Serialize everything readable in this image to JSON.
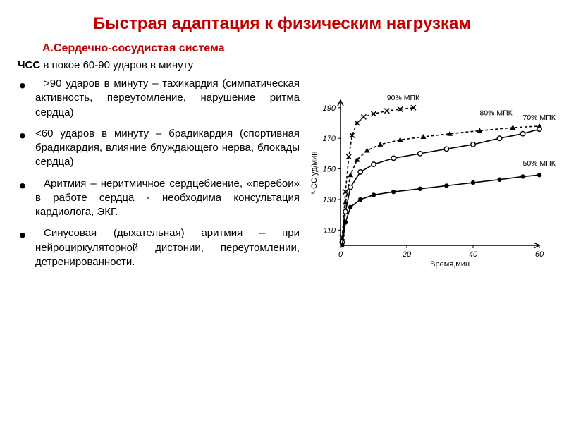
{
  "title": "Быстрая адаптация к физическим нагрузкам",
  "subtitle": "А.Сердечно-сосудистая система",
  "intro_bold": "ЧСС",
  "intro_rest": " в покое 60-90 ударов в минуту",
  "bullets": [
    " >90 ударов в минуту – тахикардия (симпатическая активность, переутомление, нарушение ритма сердца)",
    "<60 ударов в минуту – брадикардия (спортивная брадикардия, влияние блуждающего нерва, блокады сердца)",
    " Аритмия – неритмичное сердцебиение, «перебои» в работе сердца  - необходима консультация кардиолога, ЭКГ.",
    " Синусовая (дыхательная) аритмия – при нейроциркуляторной дистонии, переутомлении, детренированности."
  ],
  "chart": {
    "type": "line",
    "xlabel": "Время,мин",
    "ylabel": "ЧСС уд/мин",
    "xlim": [
      0,
      60
    ],
    "ylim": [
      100,
      195
    ],
    "xticks": [
      0,
      20,
      40,
      60
    ],
    "yticks": [
      110,
      130,
      150,
      170,
      190
    ],
    "background_color": "#ffffff",
    "axis_color": "#000000",
    "series": [
      {
        "label": "90% МПК",
        "marker": "x",
        "dash": "4,3",
        "color": "#000000",
        "data": [
          [
            0.5,
            105
          ],
          [
            1.5,
            135
          ],
          [
            2.5,
            158
          ],
          [
            3.5,
            172
          ],
          [
            5,
            180
          ],
          [
            7,
            184
          ],
          [
            10,
            186
          ],
          [
            14,
            188
          ],
          [
            18,
            189
          ],
          [
            22,
            190
          ]
        ]
      },
      {
        "label": "80% МПК",
        "marker": "triangle",
        "dash": "4,3",
        "color": "#000000",
        "data": [
          [
            0.5,
            103
          ],
          [
            1.5,
            128
          ],
          [
            3,
            146
          ],
          [
            5,
            156
          ],
          [
            8,
            162
          ],
          [
            12,
            166
          ],
          [
            18,
            169
          ],
          [
            25,
            171
          ],
          [
            33,
            173
          ],
          [
            42,
            175
          ],
          [
            52,
            177
          ],
          [
            60,
            178
          ]
        ]
      },
      {
        "label": "70% МПК",
        "marker": "circle-open",
        "dash": "none",
        "color": "#000000",
        "data": [
          [
            0.5,
            102
          ],
          [
            1.5,
            122
          ],
          [
            3,
            138
          ],
          [
            6,
            148
          ],
          [
            10,
            153
          ],
          [
            16,
            157
          ],
          [
            24,
            160
          ],
          [
            32,
            163
          ],
          [
            40,
            166
          ],
          [
            48,
            170
          ],
          [
            55,
            173
          ],
          [
            60,
            176
          ]
        ]
      },
      {
        "label": "50% МПК",
        "marker": "circle-filled",
        "dash": "none",
        "color": "#000000",
        "data": [
          [
            0.5,
            100
          ],
          [
            1.5,
            115
          ],
          [
            3,
            125
          ],
          [
            6,
            130
          ],
          [
            10,
            133
          ],
          [
            16,
            135
          ],
          [
            24,
            137
          ],
          [
            32,
            139
          ],
          [
            40,
            141
          ],
          [
            48,
            143
          ],
          [
            55,
            145
          ],
          [
            60,
            146
          ]
        ]
      }
    ],
    "label_positions": {
      "90% МПК": [
        14,
        195
      ],
      "80% МПК": [
        42,
        185
      ],
      "70% МПК": [
        55,
        182
      ],
      "50% МПК": [
        55,
        152
      ]
    }
  }
}
